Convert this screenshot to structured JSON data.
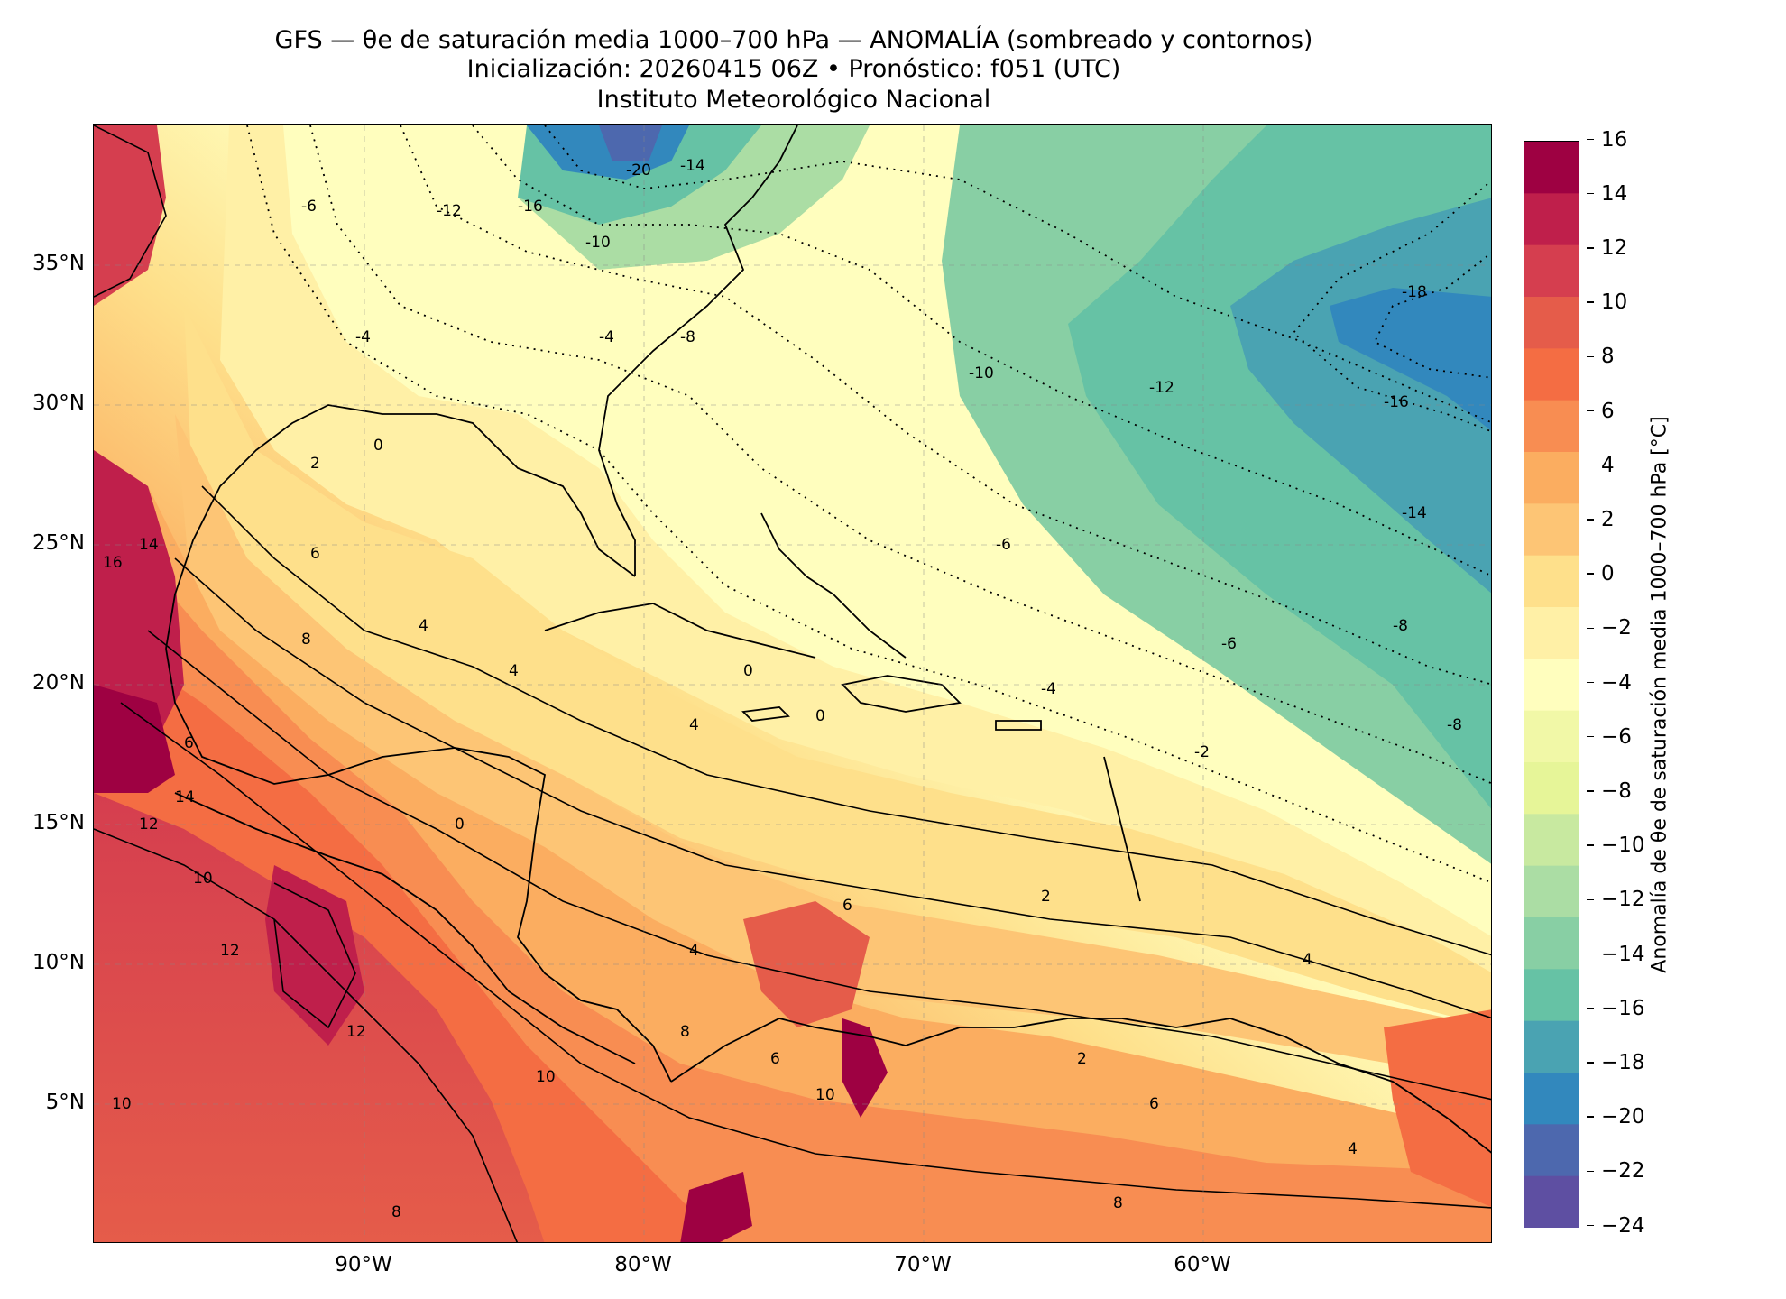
{
  "title": {
    "line1": "GFS — θe de saturación media 1000–700 hPa — ANOMALÍA (sombreado y contornos)",
    "line2": "Inicialización: 20260415 06Z   •   Pronóstico: f051 (UTC)",
    "line3": "Instituto Meteorológico Nacional"
  },
  "map": {
    "lat_labels": [
      "35°N",
      "30°N",
      "25°N",
      "20°N",
      "15°N",
      "10°N",
      "5°N"
    ],
    "lon_labels": [
      "90°W",
      "80°W",
      "70°W",
      "60°W"
    ],
    "contour_labels": [
      "-20",
      "-18",
      "-16",
      "-14",
      "-12",
      "-10",
      "-8",
      "-6",
      "-4",
      "-2",
      "0",
      "2",
      "4",
      "6",
      "8",
      "10",
      "12",
      "14",
      "16"
    ],
    "gridlines": "dashed"
  },
  "colorbar": {
    "label": "Anomalía de θe de saturación media 1000–700 hPa [°C]",
    "ticks": [
      "16",
      "14",
      "12",
      "10",
      "8",
      "6",
      "4",
      "2",
      "0",
      "−2",
      "−4",
      "−6",
      "−8",
      "−10",
      "−12",
      "−14",
      "−16",
      "−18",
      "−20",
      "−22",
      "−24"
    ],
    "colors": [
      "#9e0142",
      "#bf1f4b",
      "#d53e4f",
      "#e55c4a",
      "#f46d43",
      "#f88d52",
      "#fbad60",
      "#fdc575",
      "#fee08b",
      "#fff0a6",
      "#fffebe",
      "#f1f8a7",
      "#e6f598",
      "#c8e9a0",
      "#abdda4",
      "#88cfa4",
      "#66c2a5",
      "#4aa3b2",
      "#3288bd",
      "#4d68ae",
      "#5e4fa2"
    ]
  }
}
